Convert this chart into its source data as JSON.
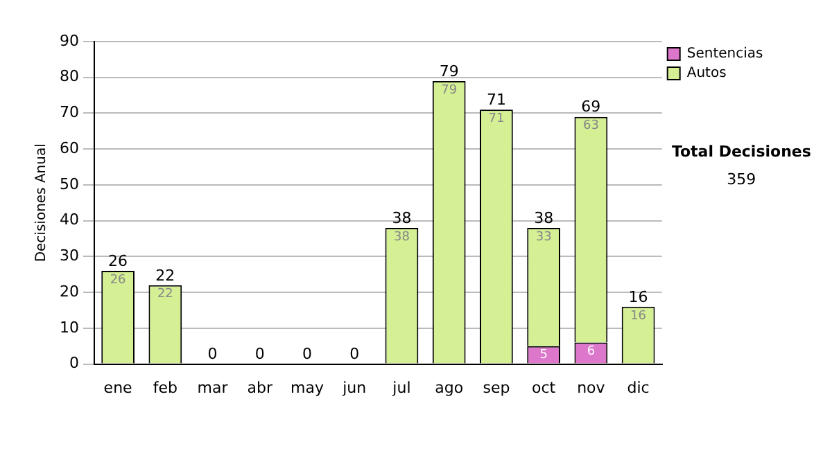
{
  "chart_data": {
    "type": "bar",
    "stacked": true,
    "ylabel": "Decisiones Anual",
    "categories": [
      "ene",
      "feb",
      "mar",
      "abr",
      "may",
      "jun",
      "jul",
      "ago",
      "sep",
      "oct",
      "nov",
      "dic"
    ],
    "series": [
      {
        "name": "Sentencias",
        "color": "#dd77cc",
        "values": [
          0,
          0,
          0,
          0,
          0,
          0,
          0,
          0,
          0,
          5,
          6,
          0
        ],
        "value_labels": [
          null,
          null,
          null,
          null,
          null,
          null,
          null,
          null,
          null,
          "5",
          "6",
          null
        ]
      },
      {
        "name": "Autos",
        "color": "#d4ef94",
        "values": [
          26,
          22,
          0,
          0,
          0,
          0,
          38,
          79,
          71,
          33,
          63,
          16
        ],
        "value_labels": [
          "26",
          "22",
          null,
          null,
          null,
          null,
          "38",
          "79",
          "71",
          "33",
          "63",
          "16"
        ]
      }
    ],
    "totals": [
      "26",
      "22",
      "0",
      "0",
      "0",
      "0",
      "38",
      "79",
      "71",
      "38",
      "69",
      "16"
    ],
    "ylim": [
      0,
      90
    ],
    "yticks": [
      0,
      10,
      20,
      30,
      40,
      50,
      60,
      70,
      80,
      90
    ],
    "grid": "y",
    "legend": "right",
    "annotations": [
      "Total Decisiones",
      "359"
    ]
  }
}
